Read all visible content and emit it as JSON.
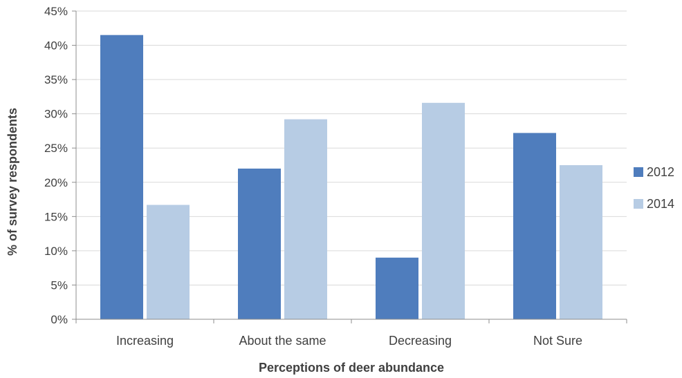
{
  "chart_data": {
    "type": "bar",
    "title": "",
    "xlabel": "Perceptions of deer abundance",
    "ylabel": "% of survey respondents",
    "categories": [
      "Increasing",
      "About the same",
      "Decreasing",
      "Not Sure"
    ],
    "series": [
      {
        "name": "2012",
        "color": "#4f7dbd",
        "values": [
          41.5,
          22.0,
          9.0,
          27.2
        ]
      },
      {
        "name": "2014",
        "color": "#b7cce4",
        "values": [
          16.7,
          29.2,
          31.6,
          22.5
        ]
      }
    ],
    "ylim": [
      0,
      45
    ],
    "yticks": [
      0,
      5,
      10,
      15,
      20,
      25,
      30,
      35,
      40,
      45
    ],
    "ytick_labels": [
      "0%",
      "5%",
      "10%",
      "15%",
      "20%",
      "25%",
      "30%",
      "35%",
      "40%",
      "45%"
    ],
    "grid": true,
    "gridline_color": "#d9d9d9",
    "legend_position": "right"
  }
}
